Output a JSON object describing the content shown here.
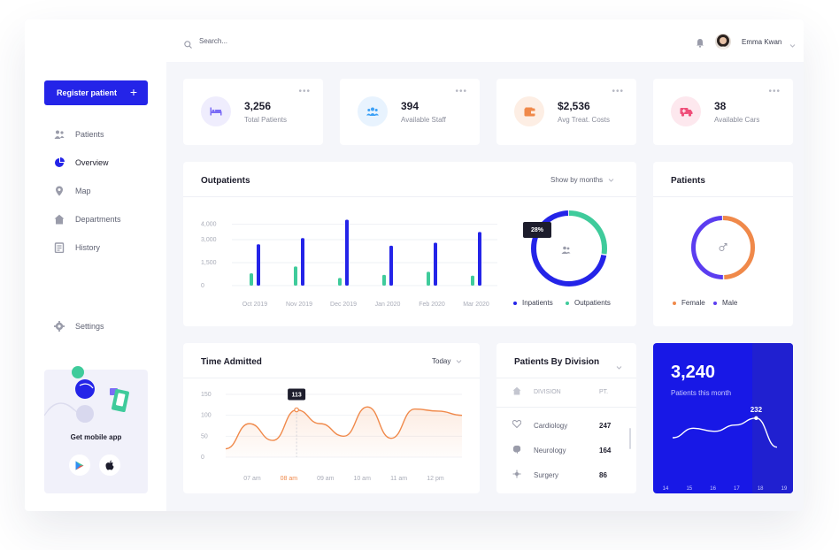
{
  "search": {
    "placeholder": "Search..."
  },
  "user": {
    "name": "Emma Kwan"
  },
  "sidebar": {
    "register_label": "Register patient",
    "register_icon": "+",
    "items": [
      {
        "label": "Patients",
        "icon": "people-icon"
      },
      {
        "label": "Overview",
        "icon": "pie-chart-icon",
        "active": true
      },
      {
        "label": "Map",
        "icon": "map-pin-icon"
      },
      {
        "label": "Departments",
        "icon": "home-icon"
      },
      {
        "label": "History",
        "icon": "history-icon"
      }
    ],
    "settings_label": "Settings",
    "promo": {
      "title": "Get mobile app"
    }
  },
  "stats": [
    {
      "value": "3,256",
      "label": "Total Patients",
      "icon": "bed-icon",
      "color": "#7b6cf6",
      "bg": "#efedfd"
    },
    {
      "value": "394",
      "label": "Available Staff",
      "icon": "staff-icon",
      "color": "#3ba0f6",
      "bg": "#e8f3fe"
    },
    {
      "value": "$2,536",
      "label": "Avg Treat. Costs",
      "icon": "wallet-icon",
      "color": "#f0894a",
      "bg": "#fdeee4"
    },
    {
      "value": "38",
      "label": "Available Cars",
      "icon": "ambulance-icon",
      "color": "#ef4f7a",
      "bg": "#fde8ee"
    }
  ],
  "outpatients": {
    "title": "Outpatients",
    "filter": "Show by months",
    "yticks": [
      "4,000",
      "3,000",
      "1,500",
      "0"
    ],
    "xticks": [
      "Oct 2019",
      "Nov 2019",
      "Dec 2019",
      "Jan 2020",
      "Feb 2020",
      "Mar 2020"
    ],
    "donut_pct": "28%",
    "legend": [
      "Inpatients",
      "Outpatients"
    ]
  },
  "patients_card": {
    "title": "Patients",
    "legend": [
      "Female",
      "Male"
    ]
  },
  "time_admitted": {
    "title": "Time Admitted",
    "filter": "Today",
    "yticks": [
      "150",
      "100",
      "50",
      "0"
    ],
    "xticks": [
      "07 am",
      "08 am",
      "09 am",
      "10 am",
      "11 am",
      "12 pm"
    ],
    "tooltip": "113"
  },
  "division": {
    "title": "Patients By Division",
    "col1": "DIVISION",
    "col2": "PT.",
    "rows": [
      {
        "name": "Cardiology",
        "value": "247",
        "icon": "heart-icon"
      },
      {
        "name": "Neurology",
        "value": "164",
        "icon": "brain-icon"
      },
      {
        "name": "Surgery",
        "value": "86",
        "icon": "surgery-icon"
      }
    ]
  },
  "month_card": {
    "value": "3,240",
    "label": "Patients this month",
    "peak": "232",
    "days": [
      "14",
      "15",
      "16",
      "17",
      "18",
      "19"
    ]
  },
  "chart_data": [
    {
      "type": "bar",
      "categories": [
        "Oct 2019",
        "Nov 2019",
        "Dec 2019",
        "Jan 2020",
        "Feb 2020",
        "Mar 2020"
      ],
      "series": [
        {
          "name": "Outpatients",
          "values": [
            800,
            1250,
            500,
            700,
            900,
            650
          ],
          "color": "#3fcb9b"
        },
        {
          "name": "Inpatients",
          "values": [
            2700,
            3100,
            4300,
            2600,
            2800,
            3500
          ],
          "color": "#2424e8"
        }
      ],
      "ylim": [
        0,
        4500
      ],
      "yticks": [
        "4,000",
        "3,000",
        "1,500",
        "0"
      ]
    },
    {
      "type": "pie",
      "labels": [
        "Outpatients",
        "Inpatients"
      ],
      "values": [
        28,
        72
      ],
      "colors": [
        "#3fcb9b",
        "#2424e8"
      ]
    },
    {
      "type": "pie",
      "labels": [
        "Female",
        "Male"
      ],
      "values": [
        50,
        50
      ],
      "colors": [
        "#f0894a",
        "#5b3df0"
      ]
    },
    {
      "type": "area",
      "x": [
        "07 am",
        "07:30",
        "08 am",
        "08:30",
        "09 am",
        "09:30",
        "10 am",
        "10:30",
        "11 am",
        "11:30",
        "12 pm"
      ],
      "values": [
        20,
        80,
        40,
        113,
        80,
        50,
        120,
        45,
        115,
        110,
        100
      ],
      "ylim": [
        0,
        150
      ],
      "color": "#f0894a"
    },
    {
      "type": "line",
      "x": [
        "14",
        "15",
        "16",
        "17",
        "18",
        "19"
      ],
      "values": [
        170,
        200,
        190,
        210,
        232,
        140
      ],
      "color": "#ffffff"
    }
  ]
}
